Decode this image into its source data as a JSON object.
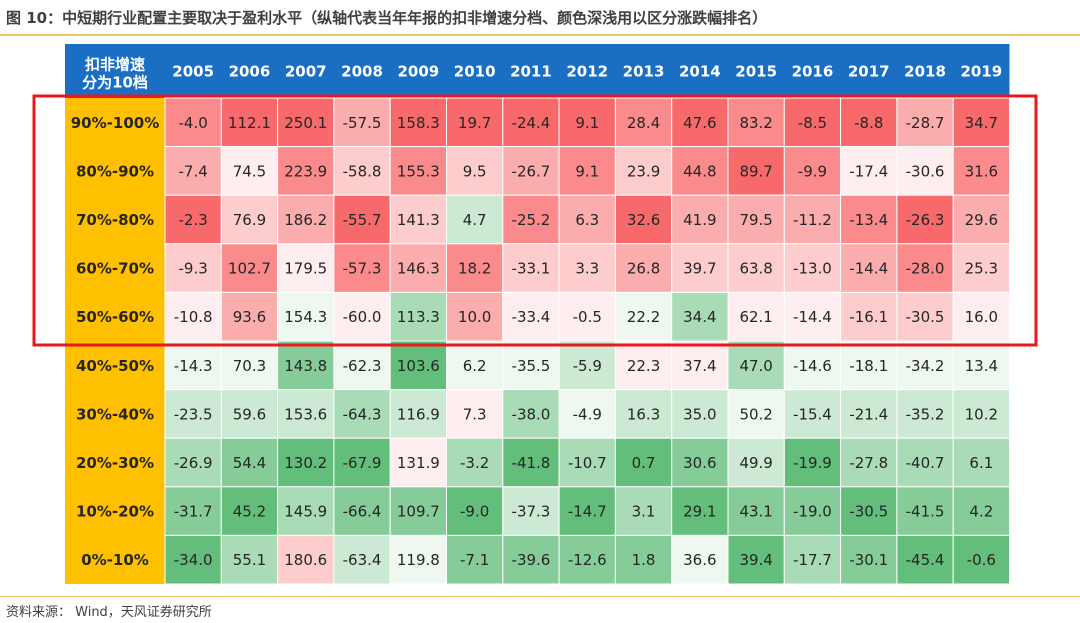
{
  "title": "图 10：中短期行业配置主要取决于盈利水平（纵轴代表当年年报的扣非增速分档、颜色深浅用以区分涨跌幅排名）",
  "source": "资料来源：  Wind，天风证券研究所",
  "chart_data": {
    "type": "heatmap",
    "corner_label_line1": "扣非增速",
    "corner_label_line2": "分为10档",
    "x": [
      "2005",
      "2006",
      "2007",
      "2008",
      "2009",
      "2010",
      "2011",
      "2012",
      "2013",
      "2014",
      "2015",
      "2016",
      "2017",
      "2018",
      "2019"
    ],
    "y": [
      "90%-100%",
      "80%-90%",
      "70%-80%",
      "60%-70%",
      "50%-60%",
      "40%-50%",
      "30%-40%",
      "20%-30%",
      "10%-20%",
      "0%-10%"
    ],
    "values": [
      [
        -4.0,
        112.1,
        250.1,
        -57.5,
        158.3,
        19.7,
        -24.4,
        9.1,
        28.4,
        47.6,
        83.2,
        -8.5,
        -8.8,
        -28.7,
        34.7
      ],
      [
        -7.4,
        74.5,
        223.9,
        -58.8,
        155.3,
        9.5,
        -26.7,
        9.1,
        23.9,
        44.8,
        89.7,
        -9.9,
        -17.4,
        -30.6,
        31.6
      ],
      [
        -2.3,
        76.9,
        186.2,
        -55.7,
        141.3,
        4.7,
        -25.2,
        6.3,
        32.6,
        41.9,
        79.5,
        -11.2,
        -13.4,
        -26.3,
        29.6
      ],
      [
        -9.3,
        102.7,
        179.5,
        -57.3,
        146.3,
        18.2,
        -33.1,
        3.3,
        26.8,
        39.7,
        63.8,
        -13.0,
        -14.4,
        -28.0,
        25.3
      ],
      [
        -10.8,
        93.6,
        154.3,
        -60.0,
        113.3,
        10.0,
        -33.4,
        -0.5,
        22.2,
        34.4,
        62.1,
        -14.4,
        -16.1,
        -30.5,
        16.0
      ],
      [
        -14.3,
        70.3,
        143.8,
        -62.3,
        103.6,
        6.2,
        -35.5,
        -5.9,
        22.3,
        37.4,
        47.0,
        -14.6,
        -18.1,
        -34.2,
        13.4
      ],
      [
        -23.5,
        59.6,
        153.6,
        -64.3,
        116.9,
        7.3,
        -38.0,
        -4.9,
        16.3,
        35.0,
        50.2,
        -15.4,
        -21.4,
        -35.2,
        10.2
      ],
      [
        -26.9,
        54.4,
        130.2,
        -67.9,
        131.9,
        -3.2,
        -41.8,
        -10.7,
        0.7,
        30.6,
        49.9,
        -19.9,
        -27.8,
        -40.7,
        6.1
      ],
      [
        -31.7,
        45.2,
        145.9,
        -66.4,
        109.7,
        -9.0,
        -37.3,
        -14.7,
        3.1,
        29.1,
        43.1,
        -19.0,
        -30.5,
        -41.5,
        4.2
      ],
      [
        -34.0,
        55.1,
        180.6,
        -63.4,
        119.8,
        -7.1,
        -39.6,
        -12.6,
        1.8,
        36.6,
        39.4,
        -17.7,
        -30.1,
        -45.4,
        -0.6
      ]
    ],
    "color_scale": {
      "high": "#f8696b",
      "mid": "#ffffff",
      "low": "#63be7b"
    },
    "header_color": "#1a6fc4",
    "band_color": "#ffc000",
    "highlight": {
      "rows_from": 0,
      "rows_to": 4,
      "color": "#e8181e"
    },
    "legend": "none",
    "grid": false
  }
}
